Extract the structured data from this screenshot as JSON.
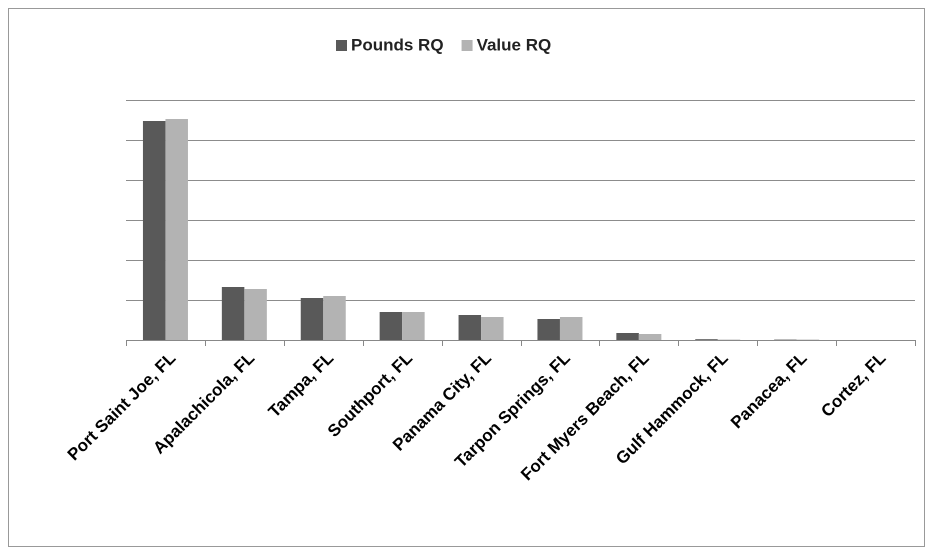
{
  "chart_data": {
    "type": "bar",
    "categories": [
      "Port Saint Joe, FL",
      "Apalachicola, FL",
      "Tampa, FL",
      "Southport, FL",
      "Panama City, FL",
      "Tarpon Springs, FL",
      "Fort Myers Beach, FL",
      "Gulf Hammock, FL",
      "Panacea, FL",
      "Cortez, FL"
    ],
    "series": [
      {
        "name": "Pounds RQ",
        "color": "#595959",
        "values": [
          5.475,
          1.325,
          1.05,
          0.7,
          0.625,
          0.525,
          0.175,
          0.02,
          0.01,
          0
        ]
      },
      {
        "name": "Value RQ",
        "color": "#b3b3b3",
        "values": [
          5.525,
          1.275,
          1.1,
          0.7,
          0.575,
          0.575,
          0.15,
          0.01,
          0.01,
          0
        ]
      }
    ],
    "ylim": [
      0,
      6
    ],
    "yticks": [
      0,
      1,
      2,
      3,
      4,
      5,
      6
    ],
    "grid": true,
    "legend": "top"
  }
}
